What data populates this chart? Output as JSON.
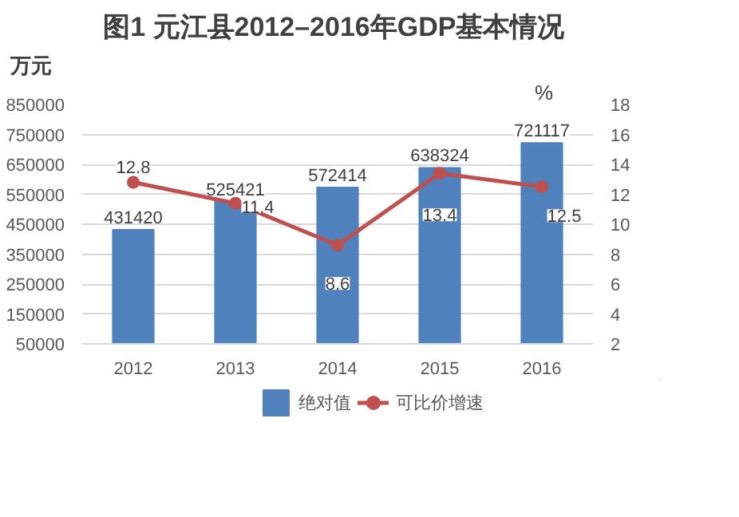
{
  "chart_data": {
    "type": "bar",
    "title": "图1  元江县2012–2016年GDP基本情况",
    "ylabel": "万元",
    "y2label": "%",
    "categories": [
      "2012",
      "2013",
      "2014",
      "2015",
      "2016"
    ],
    "series": [
      {
        "name": "绝对值",
        "color": "#4f81bd",
        "values": [
          431420,
          525421,
          572414,
          638324,
          721117
        ]
      },
      {
        "name": "可比价增速",
        "type": "line",
        "axis": "y2",
        "color": "#c0504d",
        "values": [
          12.8,
          11.4,
          8.6,
          13.4,
          12.5
        ]
      }
    ],
    "ylim": [
      50000,
      850000
    ],
    "yticks": [
      50000,
      150000,
      250000,
      350000,
      450000,
      550000,
      650000,
      750000,
      850000
    ],
    "y2lim": [
      2,
      18
    ],
    "y2ticks": [
      2,
      4,
      6,
      8,
      10,
      12,
      14,
      16,
      18
    ],
    "grid": "y",
    "legend": "bottom",
    "marker": "circle",
    "data_labels": true
  }
}
